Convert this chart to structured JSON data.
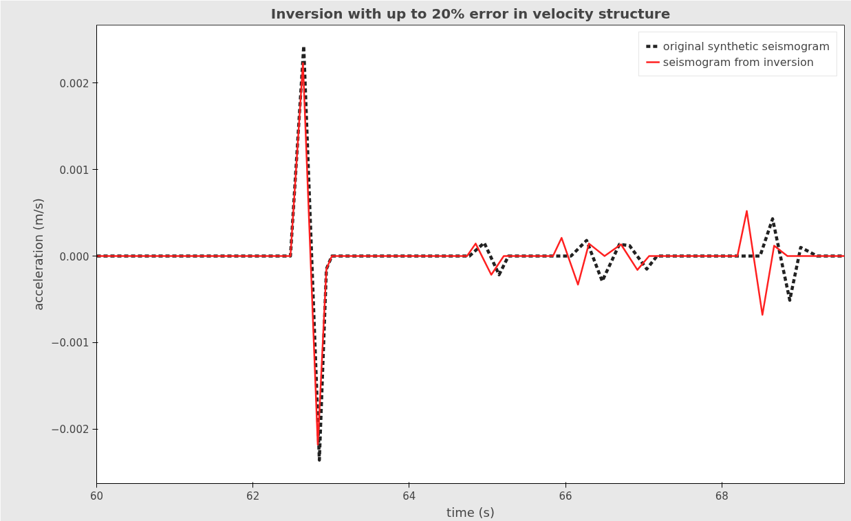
{
  "chart_data": {
    "type": "line",
    "title": "Inversion with up to 20% error in velocity structure",
    "xlabel": "time (s)",
    "ylabel": "acceleration (m/s)",
    "xlim": [
      60,
      69.57
    ],
    "ylim": [
      -0.00263,
      0.00267
    ],
    "xticks": [
      60,
      62,
      64,
      66,
      68
    ],
    "yticks": [
      {
        "value": -0.002,
        "label": "−0.002"
      },
      {
        "value": -0.001,
        "label": "−0.001"
      },
      {
        "value": 0,
        "label": "0.000"
      },
      {
        "value": 0.001,
        "label": "0.001"
      },
      {
        "value": 0.002,
        "label": "0.002"
      }
    ],
    "grid": false,
    "legend": "top right",
    "series": [
      {
        "name": "original synthetic seismogram",
        "color": "#222222",
        "line_style": "dashed",
        "x": [
          60,
          62.48,
          62.65,
          62.85,
          62.94,
          63.01,
          64.77,
          64.96,
          65.15,
          65.27,
          66.07,
          66.27,
          66.47,
          66.69,
          66.82,
          67.04,
          67.17,
          68.49,
          68.65,
          68.87,
          69.01,
          69.22,
          69.57
        ],
        "values": [
          0,
          0,
          0.00243,
          -0.00236,
          -0.00015,
          0,
          0,
          0.000153,
          -0.000216,
          0,
          0,
          0.00018,
          -0.00029,
          0.000135,
          0.00012,
          -0.00015,
          0,
          0,
          0.00043,
          -0.00051,
          0.0001,
          0,
          0
        ]
      },
      {
        "name": "seismogram from inversion",
        "color": "#ff2020",
        "line_style": "solid",
        "x": [
          60,
          62.48,
          62.64,
          62.83,
          62.94,
          63.01,
          64.74,
          64.85,
          65.05,
          65.21,
          65.84,
          65.95,
          66.16,
          66.3,
          66.5,
          66.71,
          66.92,
          67.07,
          68.2,
          68.32,
          68.52,
          68.67,
          68.84,
          69.57
        ],
        "values": [
          0,
          0,
          0.00223,
          -0.00218,
          -0.00015,
          0,
          0,
          0.000144,
          -0.000216,
          0,
          0,
          0.00021,
          -0.00033,
          0.000144,
          0,
          0.000135,
          -0.00016,
          0,
          0,
          0.00052,
          -0.00068,
          0.00012,
          0,
          0
        ]
      }
    ]
  }
}
